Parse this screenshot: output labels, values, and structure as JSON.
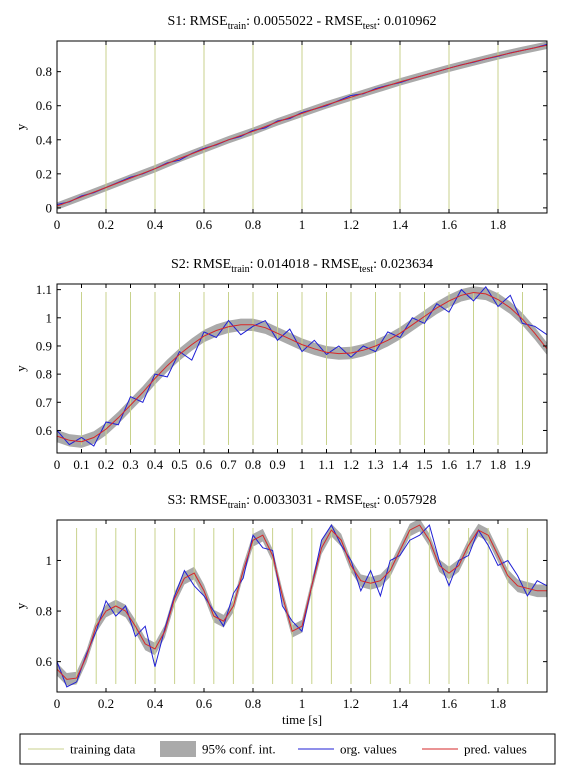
{
  "figure": {
    "xlabel": "time [s]",
    "legend": {
      "placement": "bottom",
      "entries": [
        {
          "label": "training data",
          "color": "#c8d28c",
          "kind": "line"
        },
        {
          "label": "95% conf. int.",
          "color": "#aaaaaa",
          "kind": "patch"
        },
        {
          "label": "org. values",
          "color": "#1f1fd6",
          "kind": "line"
        },
        {
          "label": "pred. values",
          "color": "#d62728",
          "kind": "line"
        }
      ]
    }
  },
  "chart_data": [
    {
      "type": "line",
      "title": {
        "prefix": "S1: RMSE",
        "sub1": "train",
        "middle": ": 0.0055022 - RMSE",
        "sub2": "test",
        "suffix": ": 0.010962"
      },
      "xlabel": "",
      "ylabel": "y",
      "xlim": [
        0,
        2
      ],
      "ylim": [
        -0.03,
        0.98
      ],
      "xticks": [
        0,
        0.2,
        0.4,
        0.6,
        0.8,
        1,
        1.2,
        1.4,
        1.6,
        1.8
      ],
      "yticks": [
        0,
        0.2,
        0.4,
        0.6,
        0.8
      ],
      "training_x": [
        0.2,
        0.4,
        0.6,
        0.8,
        1.0,
        1.2,
        1.4,
        1.6,
        1.8
      ],
      "conf_halfwidth": 0.022,
      "pred": {
        "x": [
          0,
          0.1,
          0.2,
          0.3,
          0.4,
          0.5,
          0.6,
          0.7,
          0.8,
          0.9,
          1.0,
          1.1,
          1.2,
          1.3,
          1.4,
          1.5,
          1.6,
          1.7,
          1.8,
          1.9,
          2.0
        ],
        "y": [
          0.01,
          0.065,
          0.12,
          0.175,
          0.23,
          0.29,
          0.345,
          0.4,
          0.45,
          0.505,
          0.555,
          0.605,
          0.65,
          0.695,
          0.74,
          0.78,
          0.82,
          0.857,
          0.893,
          0.925,
          0.955
        ]
      },
      "org": {
        "x": [
          0,
          0.05,
          0.1,
          0.15,
          0.2,
          0.25,
          0.3,
          0.35,
          0.4,
          0.45,
          0.5,
          0.55,
          0.6,
          0.65,
          0.7,
          0.75,
          0.8,
          0.85,
          0.9,
          0.95,
          1.0,
          1.05,
          1.1,
          1.15,
          1.2,
          1.25,
          1.3,
          1.35,
          1.4,
          1.45,
          1.5,
          1.55,
          1.6,
          1.65,
          1.7,
          1.75,
          1.8,
          1.85,
          1.9,
          1.95,
          2.0
        ],
        "y": [
          0.02,
          0.035,
          0.07,
          0.09,
          0.12,
          0.15,
          0.18,
          0.2,
          0.23,
          0.265,
          0.28,
          0.32,
          0.35,
          0.37,
          0.4,
          0.42,
          0.455,
          0.47,
          0.51,
          0.525,
          0.56,
          0.58,
          0.6,
          0.63,
          0.66,
          0.67,
          0.7,
          0.72,
          0.735,
          0.76,
          0.78,
          0.8,
          0.82,
          0.84,
          0.855,
          0.875,
          0.89,
          0.91,
          0.925,
          0.94,
          0.96
        ]
      }
    },
    {
      "type": "line",
      "title": {
        "prefix": "S2: RMSE",
        "sub1": "train",
        "middle": ": 0.014018 - RMSE",
        "sub2": "test",
        "suffix": ": 0.023634"
      },
      "xlabel": "",
      "ylabel": "y",
      "xlim": [
        0,
        2
      ],
      "ylim": [
        0.52,
        1.12
      ],
      "xticks": [
        0,
        0.1,
        0.2,
        0.3,
        0.4,
        0.5,
        0.6,
        0.7,
        0.8,
        0.9,
        1,
        1.1,
        1.2,
        1.3,
        1.4,
        1.5,
        1.6,
        1.7,
        1.8,
        1.9
      ],
      "yticks": [
        0.6,
        0.7,
        0.8,
        0.9,
        1,
        1.1
      ],
      "training_x": [
        0.1,
        0.2,
        0.3,
        0.4,
        0.5,
        0.6,
        0.7,
        0.8,
        0.9,
        1.0,
        1.1,
        1.2,
        1.3,
        1.4,
        1.5,
        1.6,
        1.7,
        1.8,
        1.9
      ],
      "conf_halfwidth": 0.022,
      "pred": {
        "x": [
          0,
          0.05,
          0.1,
          0.15,
          0.2,
          0.25,
          0.3,
          0.35,
          0.4,
          0.45,
          0.5,
          0.55,
          0.6,
          0.65,
          0.7,
          0.75,
          0.8,
          0.85,
          0.9,
          0.95,
          1.0,
          1.05,
          1.1,
          1.15,
          1.2,
          1.25,
          1.3,
          1.35,
          1.4,
          1.45,
          1.5,
          1.55,
          1.6,
          1.65,
          1.7,
          1.75,
          1.8,
          1.85,
          1.9,
          1.95,
          2.0
        ],
        "y": [
          0.58,
          0.565,
          0.56,
          0.575,
          0.605,
          0.645,
          0.69,
          0.735,
          0.785,
          0.83,
          0.87,
          0.905,
          0.935,
          0.955,
          0.968,
          0.975,
          0.975,
          0.965,
          0.945,
          0.925,
          0.905,
          0.89,
          0.878,
          0.873,
          0.875,
          0.885,
          0.9,
          0.92,
          0.945,
          0.975,
          1.005,
          1.035,
          1.06,
          1.08,
          1.09,
          1.085,
          1.065,
          1.035,
          0.995,
          0.945,
          0.89
        ]
      },
      "org": {
        "x": [
          0,
          0.05,
          0.1,
          0.15,
          0.2,
          0.25,
          0.3,
          0.35,
          0.4,
          0.45,
          0.5,
          0.55,
          0.6,
          0.65,
          0.7,
          0.75,
          0.8,
          0.85,
          0.9,
          0.95,
          1.0,
          1.05,
          1.1,
          1.15,
          1.2,
          1.25,
          1.3,
          1.35,
          1.4,
          1.45,
          1.5,
          1.55,
          1.6,
          1.65,
          1.7,
          1.75,
          1.8,
          1.85,
          1.9,
          1.95,
          2.0
        ],
        "y": [
          0.6,
          0.55,
          0.575,
          0.545,
          0.63,
          0.62,
          0.72,
          0.7,
          0.8,
          0.79,
          0.88,
          0.85,
          0.95,
          0.93,
          0.99,
          0.94,
          0.97,
          0.99,
          0.92,
          0.96,
          0.88,
          0.92,
          0.87,
          0.9,
          0.86,
          0.9,
          0.88,
          0.95,
          0.93,
          1.0,
          0.98,
          1.05,
          1.02,
          1.1,
          1.06,
          1.11,
          1.04,
          1.08,
          0.98,
          0.97,
          0.94
        ]
      }
    },
    {
      "type": "line",
      "title": {
        "prefix": "S3: RMSE",
        "sub1": "train",
        "middle": ": 0.0033031 - RMSE",
        "sub2": "test",
        "suffix": ": 0.057928"
      },
      "xlabel": "time [s]",
      "ylabel": "y",
      "xlim": [
        0,
        2
      ],
      "ylim": [
        0.48,
        1.16
      ],
      "xticks": [
        0,
        0.2,
        0.4,
        0.6,
        0.8,
        1,
        1.2,
        1.4,
        1.6,
        1.8
      ],
      "yticks": [
        0.6,
        0.8,
        1
      ],
      "training_x": [
        0.08,
        0.16,
        0.24,
        0.32,
        0.4,
        0.48,
        0.56,
        0.64,
        0.72,
        0.8,
        0.88,
        0.96,
        1.04,
        1.12,
        1.2,
        1.28,
        1.36,
        1.44,
        1.52,
        1.6,
        1.68,
        1.76,
        1.84,
        1.92
      ],
      "conf_halfwidth": 0.025,
      "pred": {
        "x": [
          0,
          0.04,
          0.08,
          0.12,
          0.16,
          0.2,
          0.24,
          0.28,
          0.32,
          0.36,
          0.4,
          0.44,
          0.48,
          0.52,
          0.56,
          0.6,
          0.64,
          0.68,
          0.72,
          0.76,
          0.8,
          0.84,
          0.88,
          0.92,
          0.96,
          1.0,
          1.04,
          1.08,
          1.12,
          1.16,
          1.2,
          1.24,
          1.28,
          1.32,
          1.36,
          1.4,
          1.44,
          1.48,
          1.52,
          1.56,
          1.6,
          1.64,
          1.68,
          1.72,
          1.76,
          1.8,
          1.84,
          1.88,
          1.92,
          1.96,
          2.0
        ],
        "y": [
          0.57,
          0.53,
          0.535,
          0.62,
          0.74,
          0.8,
          0.82,
          0.8,
          0.74,
          0.67,
          0.65,
          0.72,
          0.85,
          0.93,
          0.95,
          0.88,
          0.78,
          0.76,
          0.82,
          0.96,
          1.08,
          1.1,
          1.02,
          0.86,
          0.72,
          0.74,
          0.9,
          1.05,
          1.12,
          1.08,
          0.98,
          0.92,
          0.91,
          0.92,
          0.96,
          1.04,
          1.12,
          1.14,
          1.08,
          0.98,
          0.95,
          0.98,
          1.06,
          1.12,
          1.1,
          1.02,
          0.94,
          0.9,
          0.89,
          0.88,
          0.88
        ]
      },
      "org": {
        "x": [
          0,
          0.04,
          0.08,
          0.12,
          0.16,
          0.2,
          0.24,
          0.28,
          0.32,
          0.36,
          0.4,
          0.44,
          0.48,
          0.52,
          0.56,
          0.6,
          0.64,
          0.68,
          0.72,
          0.76,
          0.8,
          0.84,
          0.88,
          0.92,
          0.96,
          1.0,
          1.04,
          1.08,
          1.12,
          1.16,
          1.2,
          1.24,
          1.28,
          1.32,
          1.36,
          1.4,
          1.44,
          1.48,
          1.52,
          1.56,
          1.6,
          1.64,
          1.68,
          1.72,
          1.76,
          1.8,
          1.84,
          1.88,
          1.92,
          1.96,
          2.0
        ],
        "y": [
          0.6,
          0.5,
          0.52,
          0.63,
          0.72,
          0.84,
          0.78,
          0.82,
          0.7,
          0.74,
          0.58,
          0.73,
          0.86,
          0.96,
          0.9,
          0.86,
          0.8,
          0.74,
          0.87,
          0.93,
          1.1,
          1.05,
          1.04,
          0.82,
          0.76,
          0.72,
          0.9,
          1.08,
          1.14,
          1.06,
          1.0,
          0.88,
          0.96,
          0.86,
          1.0,
          1.02,
          1.08,
          1.1,
          1.14,
          1.0,
          0.9,
          1.0,
          1.02,
          1.12,
          1.06,
          0.98,
          1.0,
          0.94,
          0.86,
          0.92,
          0.9
        ]
      }
    }
  ]
}
